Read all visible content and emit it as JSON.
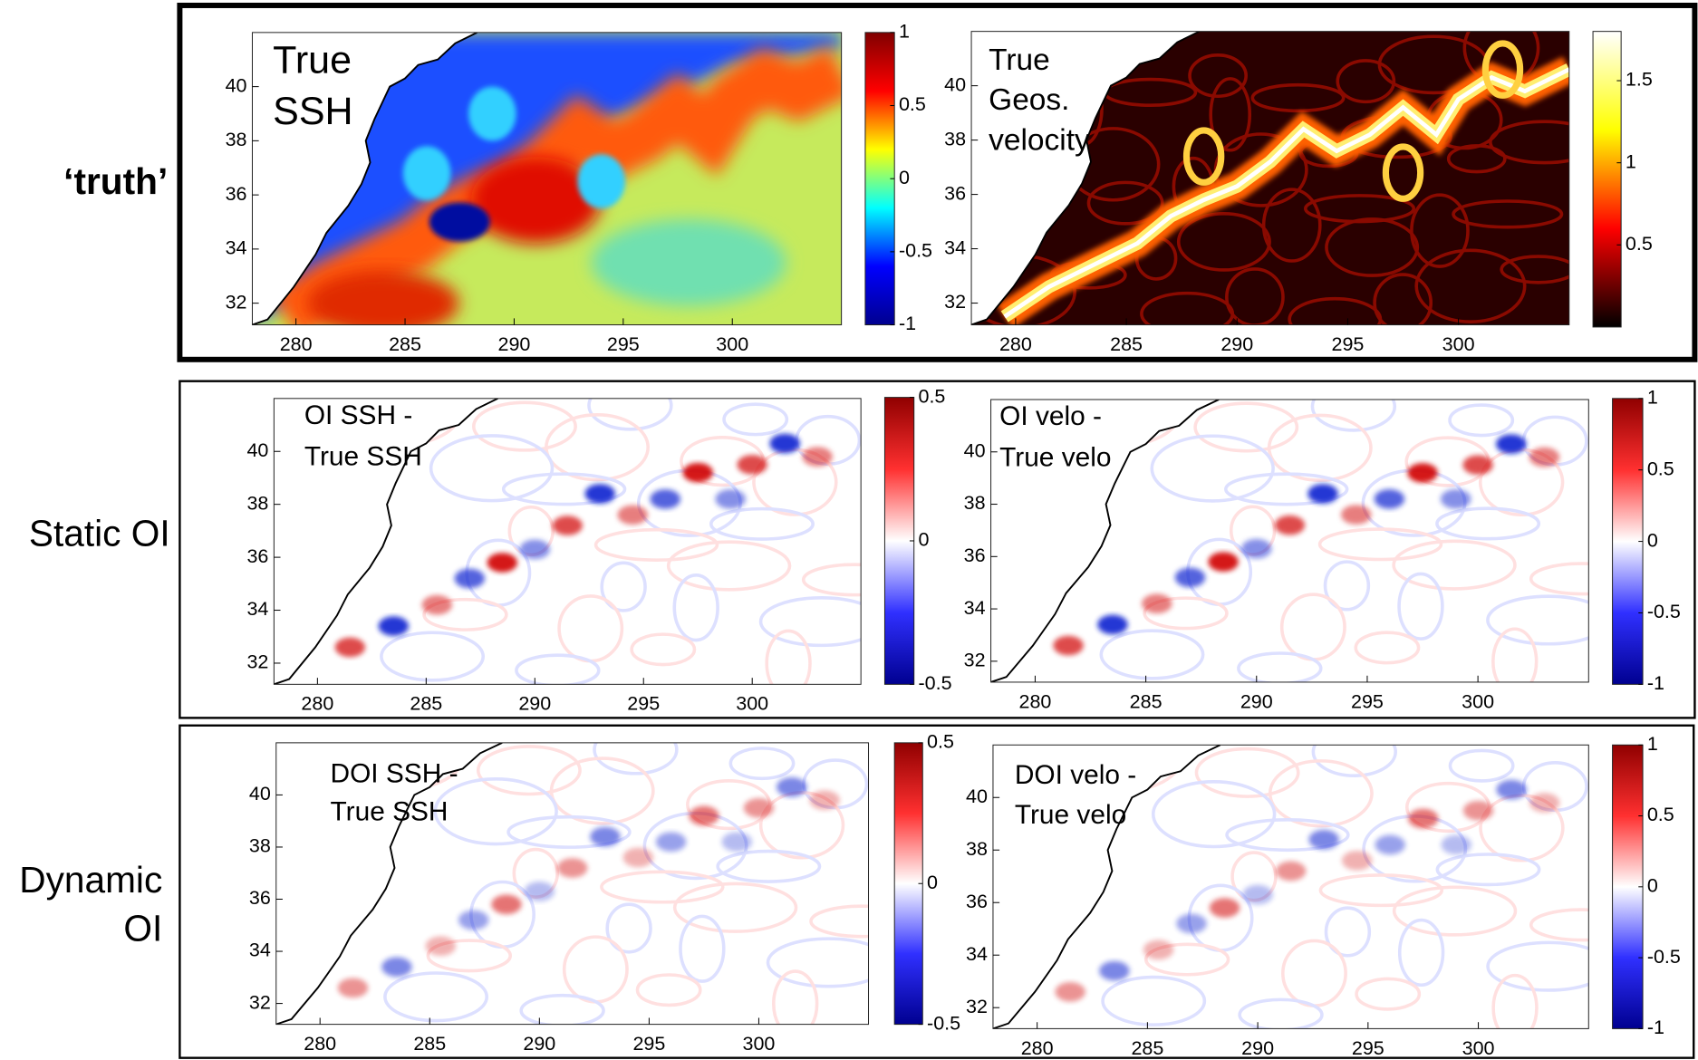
{
  "figure": {
    "rows": [
      {
        "label": [
          "‘truth’"
        ],
        "panels": [
          {
            "title": [
              "True",
              "SSH"
            ],
            "colormap": "jet",
            "xlim": [
              278,
              305
            ],
            "ylim": [
              31.2,
              42
            ],
            "xticks": [
              280,
              285,
              290,
              295,
              300
            ],
            "yticks": [
              32,
              34,
              36,
              38,
              40
            ],
            "colorbar": {
              "lim": [
                -1,
                1
              ],
              "ticks": [
                -1,
                -0.5,
                0,
                0.5,
                1
              ]
            }
          },
          {
            "title": [
              "True",
              "Geos.",
              "velocity"
            ],
            "colormap": "hot",
            "xlim": [
              278,
              305
            ],
            "ylim": [
              31.2,
              42
            ],
            "xticks": [
              280,
              285,
              290,
              295,
              300
            ],
            "yticks": [
              32,
              34,
              36,
              38,
              40
            ],
            "colorbar": {
              "lim": [
                0,
                1.8
              ],
              "ticks": [
                0.5,
                1,
                1.5
              ]
            }
          }
        ]
      },
      {
        "label": [
          "Static OI"
        ],
        "panels": [
          {
            "title": [
              "OI SSH -",
              "True SSH"
            ],
            "colormap": "bwr",
            "xlim": [
              278,
              305
            ],
            "ylim": [
              31.2,
              42
            ],
            "xticks": [
              280,
              285,
              290,
              295,
              300
            ],
            "yticks": [
              32,
              34,
              36,
              38,
              40
            ],
            "colorbar": {
              "lim": [
                -0.5,
                0.5
              ],
              "ticks": [
                -0.5,
                0,
                0.5
              ]
            }
          },
          {
            "title": [
              "OI velo -",
              "True velo"
            ],
            "colormap": "bwr",
            "xlim": [
              278,
              305
            ],
            "ylim": [
              31.2,
              42
            ],
            "xticks": [
              280,
              285,
              290,
              295,
              300
            ],
            "yticks": [
              32,
              34,
              36,
              38,
              40
            ],
            "colorbar": {
              "lim": [
                -1,
                1
              ],
              "ticks": [
                -1,
                -0.5,
                0,
                0.5,
                1
              ]
            }
          }
        ]
      },
      {
        "label": [
          "Dynamic",
          "OI"
        ],
        "panels": [
          {
            "title": [
              "DOI SSH -",
              "True SSH"
            ],
            "colormap": "bwr",
            "xlim": [
              278,
              305
            ],
            "ylim": [
              31.2,
              42
            ],
            "xticks": [
              280,
              285,
              290,
              295,
              300
            ],
            "yticks": [
              32,
              34,
              36,
              38,
              40
            ],
            "colorbar": {
              "lim": [
                -0.5,
                0.5
              ],
              "ticks": [
                -0.5,
                0,
                0.5
              ]
            }
          },
          {
            "title": [
              "DOI velo -",
              "True velo"
            ],
            "colormap": "bwr",
            "xlim": [
              278,
              305
            ],
            "ylim": [
              31.2,
              42
            ],
            "xticks": [
              280,
              285,
              290,
              295,
              300
            ],
            "yticks": [
              32,
              34,
              36,
              38,
              40
            ],
            "colorbar": {
              "lim": [
                -1,
                1
              ],
              "ticks": [
                -1,
                -0.5,
                0,
                0.5,
                1
              ]
            }
          }
        ]
      }
    ]
  }
}
